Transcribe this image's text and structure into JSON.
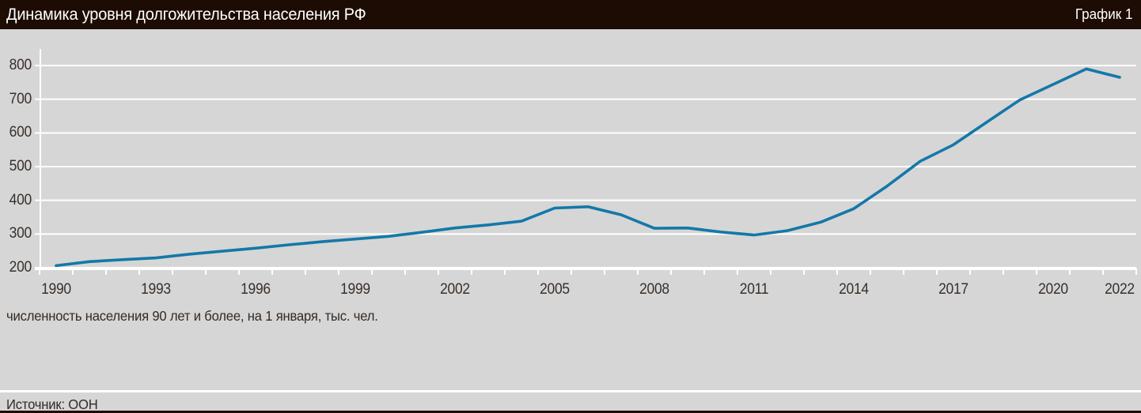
{
  "header": {
    "title": "Динамика уровня долгожительства населения РФ",
    "tag": "График 1"
  },
  "caption": "численность населения 90 лет и более, на 1 января, тыс. чел.",
  "source": "Источник: ООН",
  "chart_data": {
    "type": "line",
    "title": "Динамика уровня долгожительства населения РФ",
    "ylabel": "численность населения 90 лет и более, на 1 января, тыс. чел.",
    "x": [
      1990,
      1991,
      1992,
      1993,
      1994,
      1995,
      1996,
      1997,
      1998,
      1999,
      2000,
      2001,
      2002,
      2003,
      2004,
      2005,
      2006,
      2007,
      2008,
      2009,
      2010,
      2011,
      2012,
      2013,
      2014,
      2015,
      2016,
      2017,
      2018,
      2019,
      2020,
      2021,
      2022
    ],
    "values": [
      206,
      218,
      224,
      229,
      240,
      249,
      258,
      268,
      277,
      285,
      293,
      305,
      318,
      327,
      338,
      377,
      381,
      357,
      317,
      318,
      306,
      297,
      310,
      335,
      375,
      442,
      516,
      565,
      632,
      698,
      744,
      790,
      765
    ],
    "x_tick_labels": [
      "1990",
      "1993",
      "1996",
      "1999",
      "2002",
      "2005",
      "2008",
      "2011",
      "2014",
      "2017",
      "2020",
      "2022"
    ],
    "y_ticks": [
      200,
      300,
      400,
      500,
      600,
      700,
      800
    ],
    "ylim": [
      200,
      800
    ],
    "xlim": [
      1990,
      2023
    ],
    "grid": true,
    "legend_position": "none",
    "line_color": "#1478a8",
    "grid_color": "#ffffff",
    "background_color": "#d6d6d6",
    "header_color": "#1c0c04",
    "text_color": "#38302b"
  }
}
